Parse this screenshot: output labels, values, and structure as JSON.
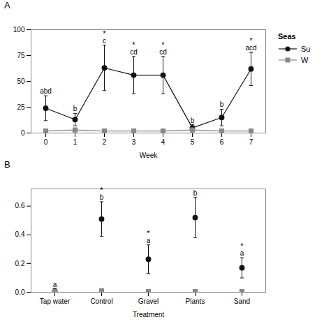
{
  "chart_data": [
    {
      "type": "line",
      "title": "A",
      "xlabel": "Week",
      "x": [
        0,
        1,
        2,
        3,
        4,
        5,
        6,
        7
      ],
      "xlim": [
        -0.5,
        7.5
      ],
      "xticks": [
        0,
        1,
        2,
        3,
        4,
        5,
        6,
        7
      ],
      "ylim": [
        0,
        100
      ],
      "yticks": [
        0,
        25,
        50,
        75,
        100
      ],
      "grid": false,
      "legend": "right",
      "legend_title": "Seas",
      "series": [
        {
          "name": "Su",
          "color": "#111111",
          "marker": "circle",
          "line_style": "solid",
          "values": [
            24,
            13,
            63,
            56,
            56,
            5,
            15,
            62
          ],
          "errors": [
            12,
            6,
            22,
            18,
            18,
            3,
            8,
            16
          ]
        },
        {
          "name": "W",
          "color": "#888888",
          "marker": "square",
          "line_style": "solid",
          "values": [
            2,
            3,
            2,
            2,
            2,
            3,
            2,
            2
          ],
          "errors": [
            1,
            1,
            1,
            1,
            1,
            1,
            1,
            1
          ]
        }
      ],
      "annotations": [
        {
          "x": 0,
          "texts": [
            "abd"
          ]
        },
        {
          "x": 1,
          "texts": [
            "b"
          ]
        },
        {
          "x": 2,
          "texts": [
            "c",
            "*"
          ]
        },
        {
          "x": 3,
          "texts": [
            "cd",
            "*"
          ]
        },
        {
          "x": 4,
          "texts": [
            "cd",
            "*"
          ]
        },
        {
          "x": 5,
          "texts": [
            "b"
          ]
        },
        {
          "x": 6,
          "texts": [
            "b"
          ]
        },
        {
          "x": 7,
          "texts": [
            "acd",
            "*"
          ]
        }
      ]
    },
    {
      "type": "scatter",
      "title": "B",
      "xlabel": "Treatment",
      "categories": [
        "Tap water",
        "Control",
        "Gravel",
        "Plants",
        "Sand"
      ],
      "ylim": [
        0.0,
        0.72
      ],
      "yticks": [
        {
          "value": 0,
          "label": "0.0"
        },
        0.2,
        0.4,
        0.6
      ],
      "grid": false,
      "series": [
        {
          "name": "Su",
          "color": "#111111",
          "marker": "circle",
          "line_style": "none",
          "values": [
            0.01,
            0.51,
            0.23,
            0.52,
            0.17
          ],
          "errors": [
            0.01,
            0.12,
            0.1,
            0.14,
            0.07
          ]
        },
        {
          "name": "W",
          "color": "#888888",
          "marker": "square",
          "line_style": "none",
          "values": [
            0.005,
            0.01,
            0.005,
            0.005,
            0.005
          ],
          "errors": [
            0.003,
            0.003,
            0.003,
            0.003,
            0.003
          ]
        }
      ],
      "annotations": [
        {
          "x": "Tap water",
          "texts": [
            "a"
          ]
        },
        {
          "x": "Control",
          "texts": [
            "b",
            "*"
          ]
        },
        {
          "x": "Gravel",
          "texts": [
            "a",
            "*"
          ]
        },
        {
          "x": "Plants",
          "texts": [
            "b"
          ]
        },
        {
          "x": "Sand",
          "texts": [
            "a",
            "*"
          ]
        }
      ]
    }
  ]
}
